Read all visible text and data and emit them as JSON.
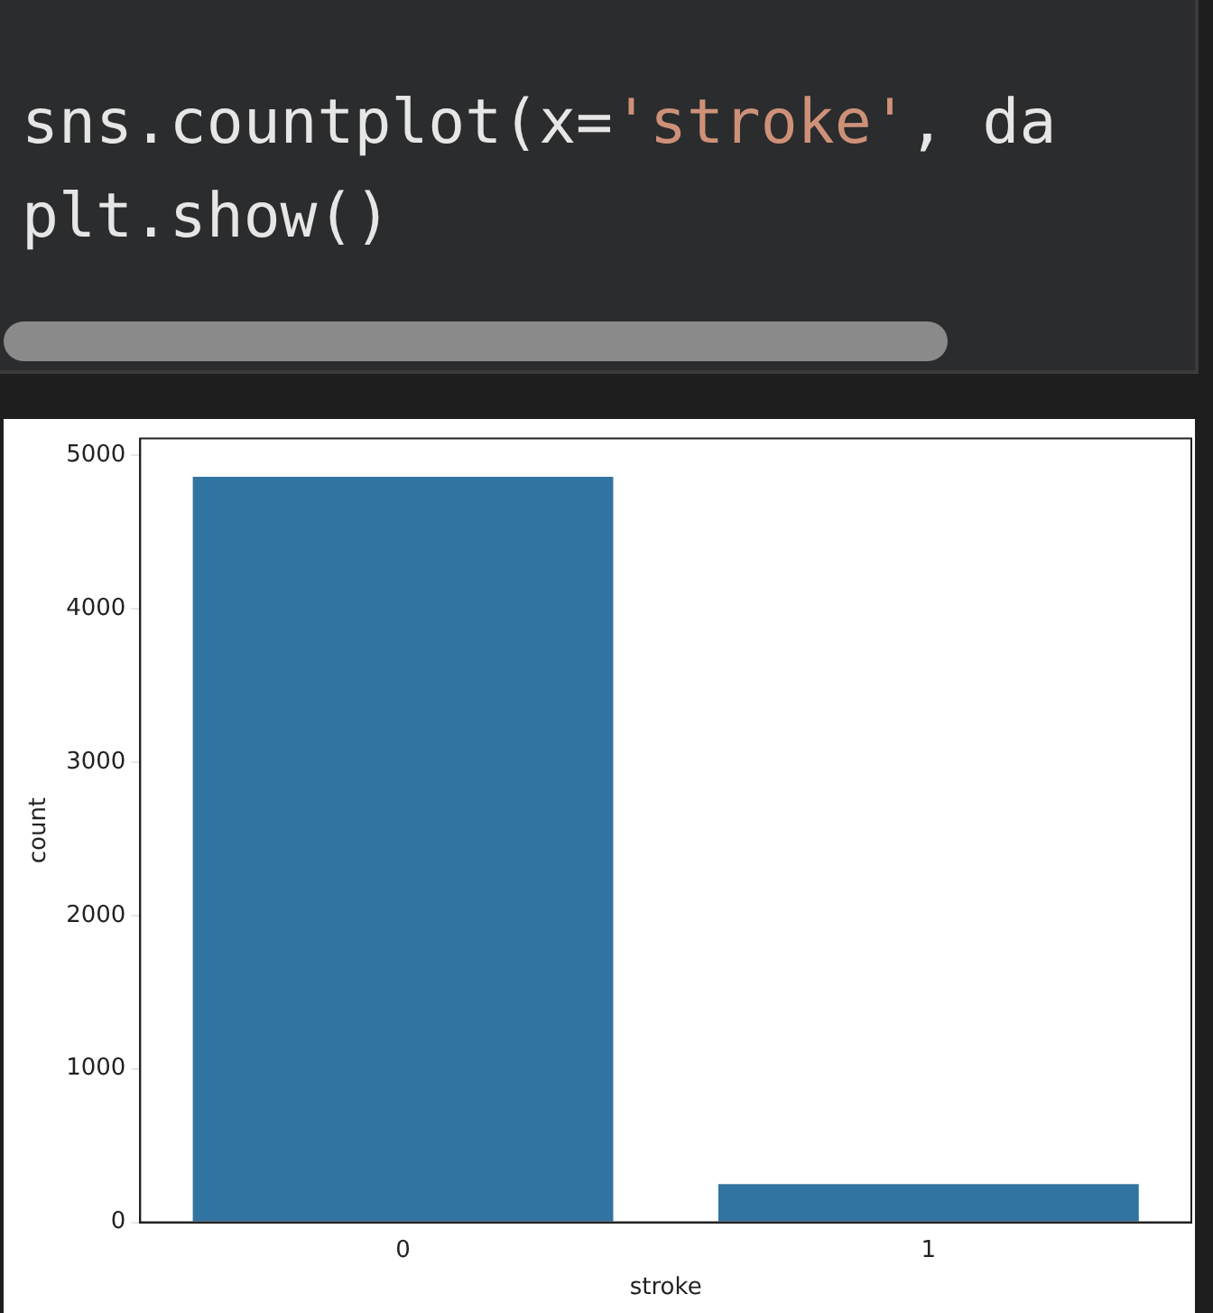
{
  "chart_data": {
    "type": "bar",
    "annotations": [
      "sns.countplot(x='stroke', da",
      "plt.show()"
    ],
    "xlabel": "stroke",
    "ylabel": "count",
    "categories": [
      "0",
      "1"
    ],
    "values": [
      4860,
      250
    ],
    "color": "#3274a1",
    "ylim": [
      0,
      5110
    ],
    "yticks": [
      0,
      1000,
      2000,
      3000,
      4000,
      5000
    ],
    "grid": false,
    "legend": false
  }
}
